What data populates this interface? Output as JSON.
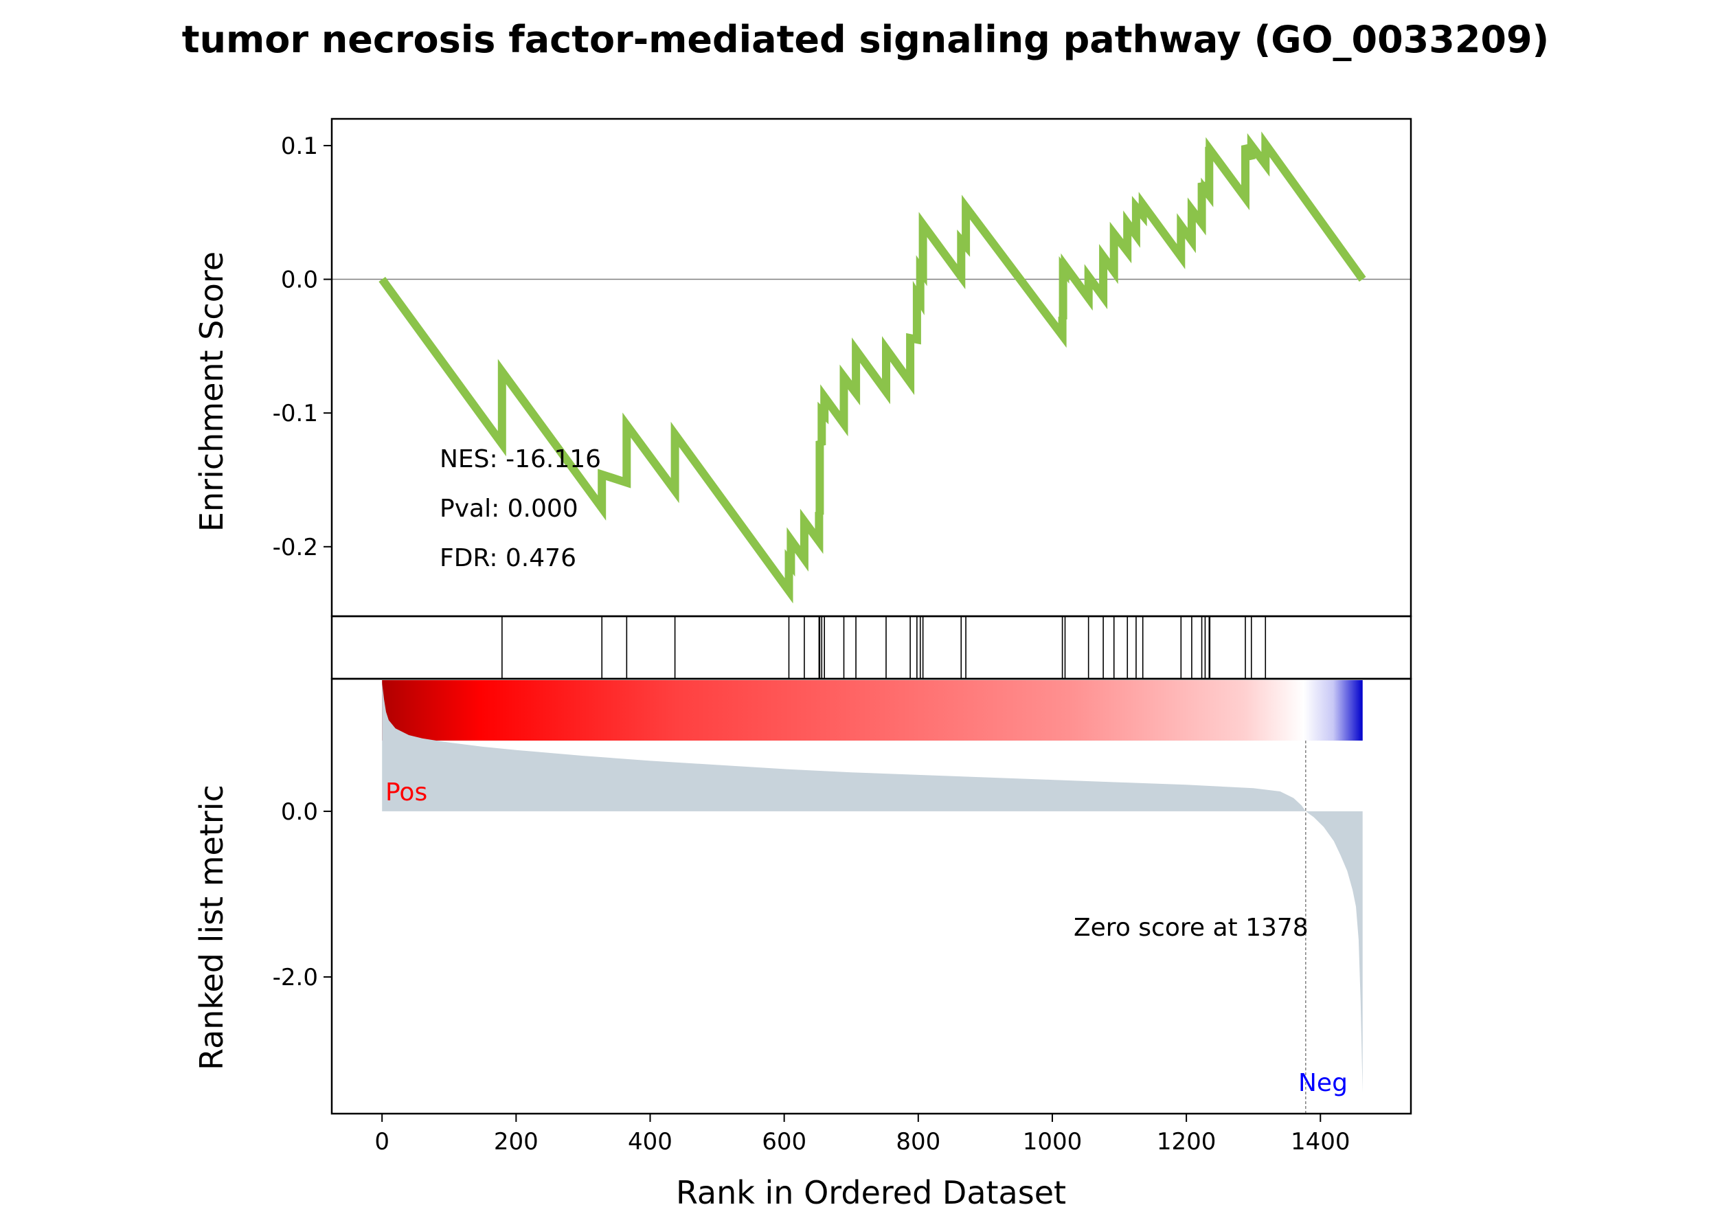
{
  "chart_data": {
    "type": "line",
    "title": "tumor necrosis factor-mediated signaling pathway (GO_0033209)",
    "xlabel": "Rank in Ordered Dataset",
    "xlim": [
      -75,
      1535
    ],
    "x_ticks": [
      {
        "value": 0,
        "label": "0"
      },
      {
        "value": 200,
        "label": "200"
      },
      {
        "value": 400,
        "label": "400"
      },
      {
        "value": 600,
        "label": "600"
      },
      {
        "value": 800,
        "label": "800"
      },
      {
        "value": 1000,
        "label": "1000"
      },
      {
        "value": 1200,
        "label": "1200"
      },
      {
        "value": 1400,
        "label": "1400"
      }
    ],
    "enrichment_panel": {
      "ylabel": "Enrichment Score",
      "ylim": [
        -0.252,
        0.12
      ],
      "y_ticks": [
        {
          "value": 0.1,
          "label": "0.1"
        },
        {
          "value": 0.0,
          "label": "0.0"
        },
        {
          "value": -0.1,
          "label": "-0.1"
        },
        {
          "value": -0.2,
          "label": "-0.2"
        }
      ],
      "line_color": "#8bc34a",
      "baseline_color": "#808080",
      "stats": [
        "NES: -16.116",
        "Pval: 0.000",
        "FDR: 0.476"
      ],
      "series": {
        "x": [
          0,
          179,
          179,
          328,
          328,
          365,
          365,
          437,
          437,
          607,
          607,
          610,
          610,
          630,
          630,
          652,
          652,
          653,
          653,
          656,
          656,
          660,
          660,
          689,
          689,
          707,
          707,
          752,
          752,
          788,
          788,
          798,
          798,
          803,
          803,
          807,
          807,
          864,
          864,
          871,
          871,
          1015,
          1015,
          1016,
          1016,
          1019,
          1019,
          1054,
          1054,
          1076,
          1076,
          1092,
          1092,
          1112,
          1112,
          1125,
          1125,
          1135,
          1135,
          1192,
          1192,
          1208,
          1208,
          1223,
          1223,
          1228,
          1228,
          1234,
          1234,
          1235,
          1235,
          1288,
          1288,
          1297,
          1297,
          1318,
          1318,
          1463
        ],
        "y": [
          0,
          -0.123,
          -0.069,
          -0.171,
          -0.146,
          -0.152,
          -0.109,
          -0.158,
          -0.116,
          -0.233,
          -0.211,
          -0.213,
          -0.195,
          -0.209,
          -0.181,
          -0.196,
          -0.174,
          -0.176,
          -0.121,
          -0.124,
          -0.099,
          -0.101,
          -0.088,
          -0.108,
          -0.073,
          -0.085,
          -0.053,
          -0.084,
          -0.052,
          -0.077,
          -0.044,
          -0.045,
          -0.012,
          -0.016,
          0.008,
          0.005,
          0.041,
          0.002,
          0.029,
          0.025,
          0.054,
          -0.042,
          -0.028,
          -0.03,
          0.008,
          0.006,
          0.01,
          -0.014,
          0.002,
          -0.013,
          0.017,
          0.006,
          0.034,
          0.021,
          0.042,
          0.033,
          0.054,
          0.048,
          0.056,
          0.017,
          0.04,
          0.029,
          0.052,
          0.042,
          0.072,
          0.065,
          0.067,
          0.063,
          0.096,
          0.096,
          0.097,
          0.061,
          0.1,
          0.09,
          0.1,
          0.086,
          0.101,
          0.0
        ]
      }
    },
    "hits_panel": {
      "positions": [
        179,
        328,
        365,
        437,
        607,
        630,
        652,
        653,
        656,
        660,
        689,
        707,
        752,
        788,
        798,
        803,
        807,
        864,
        871,
        1015,
        1019,
        1054,
        1076,
        1092,
        1112,
        1125,
        1135,
        1192,
        1208,
        1223,
        1228,
        1234,
        1235,
        1288,
        1297,
        1318
      ]
    },
    "metric_panel": {
      "ylabel": "Ranked list metric",
      "ylim": [
        -3.65,
        1.6
      ],
      "y_ticks": [
        {
          "value": 0.0,
          "label": "0.0"
        },
        {
          "value": -2.0,
          "label": "-2.0"
        }
      ],
      "fill_color": "#c8d3db",
      "zero_crossing": 1378,
      "zero_label": "Zero score at 1378",
      "pos_label": "Pos",
      "neg_label": "Neg",
      "pos_color": "#ff0000",
      "neg_color": "#0000ff",
      "series": {
        "x": [
          0,
          3,
          6,
          10,
          20,
          40,
          60,
          100,
          150,
          200,
          300,
          400,
          500,
          600,
          700,
          800,
          900,
          1000,
          1100,
          1200,
          1300,
          1340,
          1360,
          1372,
          1378,
          1390,
          1405,
          1420,
          1430,
          1440,
          1448,
          1453,
          1457,
          1460,
          1463
        ],
        "y": [
          1.55,
          1.35,
          1.2,
          1.1,
          1.0,
          0.92,
          0.88,
          0.83,
          0.78,
          0.74,
          0.67,
          0.61,
          0.56,
          0.51,
          0.47,
          0.44,
          0.41,
          0.38,
          0.35,
          0.32,
          0.28,
          0.24,
          0.16,
          0.07,
          0.0,
          -0.07,
          -0.19,
          -0.36,
          -0.53,
          -0.72,
          -0.95,
          -1.15,
          -1.55,
          -2.3,
          -3.4
        ]
      }
    },
    "colorbar": {
      "stops": [
        {
          "offset": 0,
          "color": "#b00000"
        },
        {
          "offset": 0.1,
          "color": "#ff0000"
        },
        {
          "offset": 0.3,
          "color": "#ff4040"
        },
        {
          "offset": 0.7,
          "color": "#ff9090"
        },
        {
          "offset": 0.88,
          "color": "#ffd0d0"
        },
        {
          "offset": 0.94,
          "color": "#ffffff"
        },
        {
          "offset": 0.97,
          "color": "#c8c8f6"
        },
        {
          "offset": 1,
          "color": "#0000cc"
        }
      ]
    }
  }
}
